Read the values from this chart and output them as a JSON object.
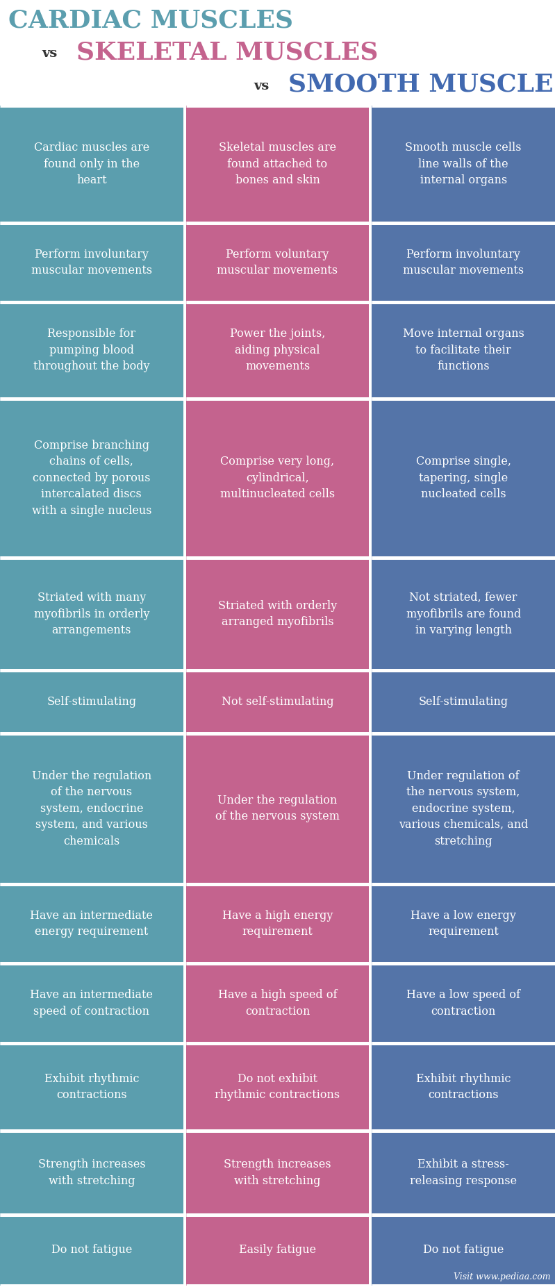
{
  "title_line1": "CARDIAC MUSCLES",
  "title_line2_left": "vs",
  "title_line2_mid": "SKELETAL MUSCLES",
  "title_line3_left": "vs",
  "title_line3_right": "SMOOTH MUSCLES",
  "color_cardiac": "#5b9eae",
  "color_skeletal": "#c4638e",
  "color_smooth": "#5474a8",
  "color_title_cardiac": "#5b9eae",
  "color_title_skeletal": "#c4638e",
  "color_title_smooth": "#4169b0",
  "color_vs": "#333333",
  "text_color": "#ffffff",
  "background_color": "#ffffff",
  "watermark": "Visit www.pediaa.com",
  "rows": [
    [
      "Cardiac muscles are\nfound only in the\nheart",
      "Skeletal muscles are\nfound attached to\nbones and skin",
      "Smooth muscle cells\nline walls of the\ninternal organs"
    ],
    [
      "Perform involuntary\nmuscular movements",
      "Perform voluntary\nmuscular movements",
      "Perform involuntary\nmuscular movements"
    ],
    [
      "Responsible for\npumping blood\nthroughout the body",
      "Power the joints,\naiding physical\nmovements",
      "Move internal organs\nto facilitate their\nfunctions"
    ],
    [
      "Comprise branching\nchains of cells,\nconnected by porous\nintercalated discs\nwith a single nucleus",
      "Comprise very long,\ncylindrical,\nmultinucleated cells",
      "Comprise single,\ntapering, single\nnucleated cells"
    ],
    [
      "Striated with many\nmyofibrils in orderly\narrangements",
      "Striated with orderly\narranged myofibrils",
      "Not striated, fewer\nmyofibrils are found\nin varying length"
    ],
    [
      "Self-stimulating",
      "Not self-stimulating",
      "Self-stimulating"
    ],
    [
      "Under the regulation\nof the nervous\nsystem, endocrine\nsystem, and various\nchemicals",
      "Under the regulation\nof the nervous system",
      "Under regulation of\nthe nervous system,\nendocrine system,\nvarious chemicals, and\nstretching"
    ],
    [
      "Have an intermediate\nenergy requirement",
      "Have a high energy\nrequirement",
      "Have a low energy\nrequirement"
    ],
    [
      "Have an intermediate\nspeed of contraction",
      "Have a high speed of\ncontraction",
      "Have a low speed of\ncontraction"
    ],
    [
      "Exhibit rhythmic\ncontractions",
      "Do not exhibit\nrhythmic contractions",
      "Exhibit rhythmic\ncontractions"
    ],
    [
      "Strength increases\nwith stretching",
      "Strength increases\nwith stretching",
      "Exhibit a stress-\nreleasing response"
    ],
    [
      "Do not fatigue",
      "Easily fatigue",
      "Do not fatigue"
    ]
  ],
  "row_weights": [
    1.4,
    0.95,
    1.15,
    1.9,
    1.35,
    0.75,
    1.8,
    0.95,
    0.95,
    1.05,
    1.0,
    0.85
  ]
}
